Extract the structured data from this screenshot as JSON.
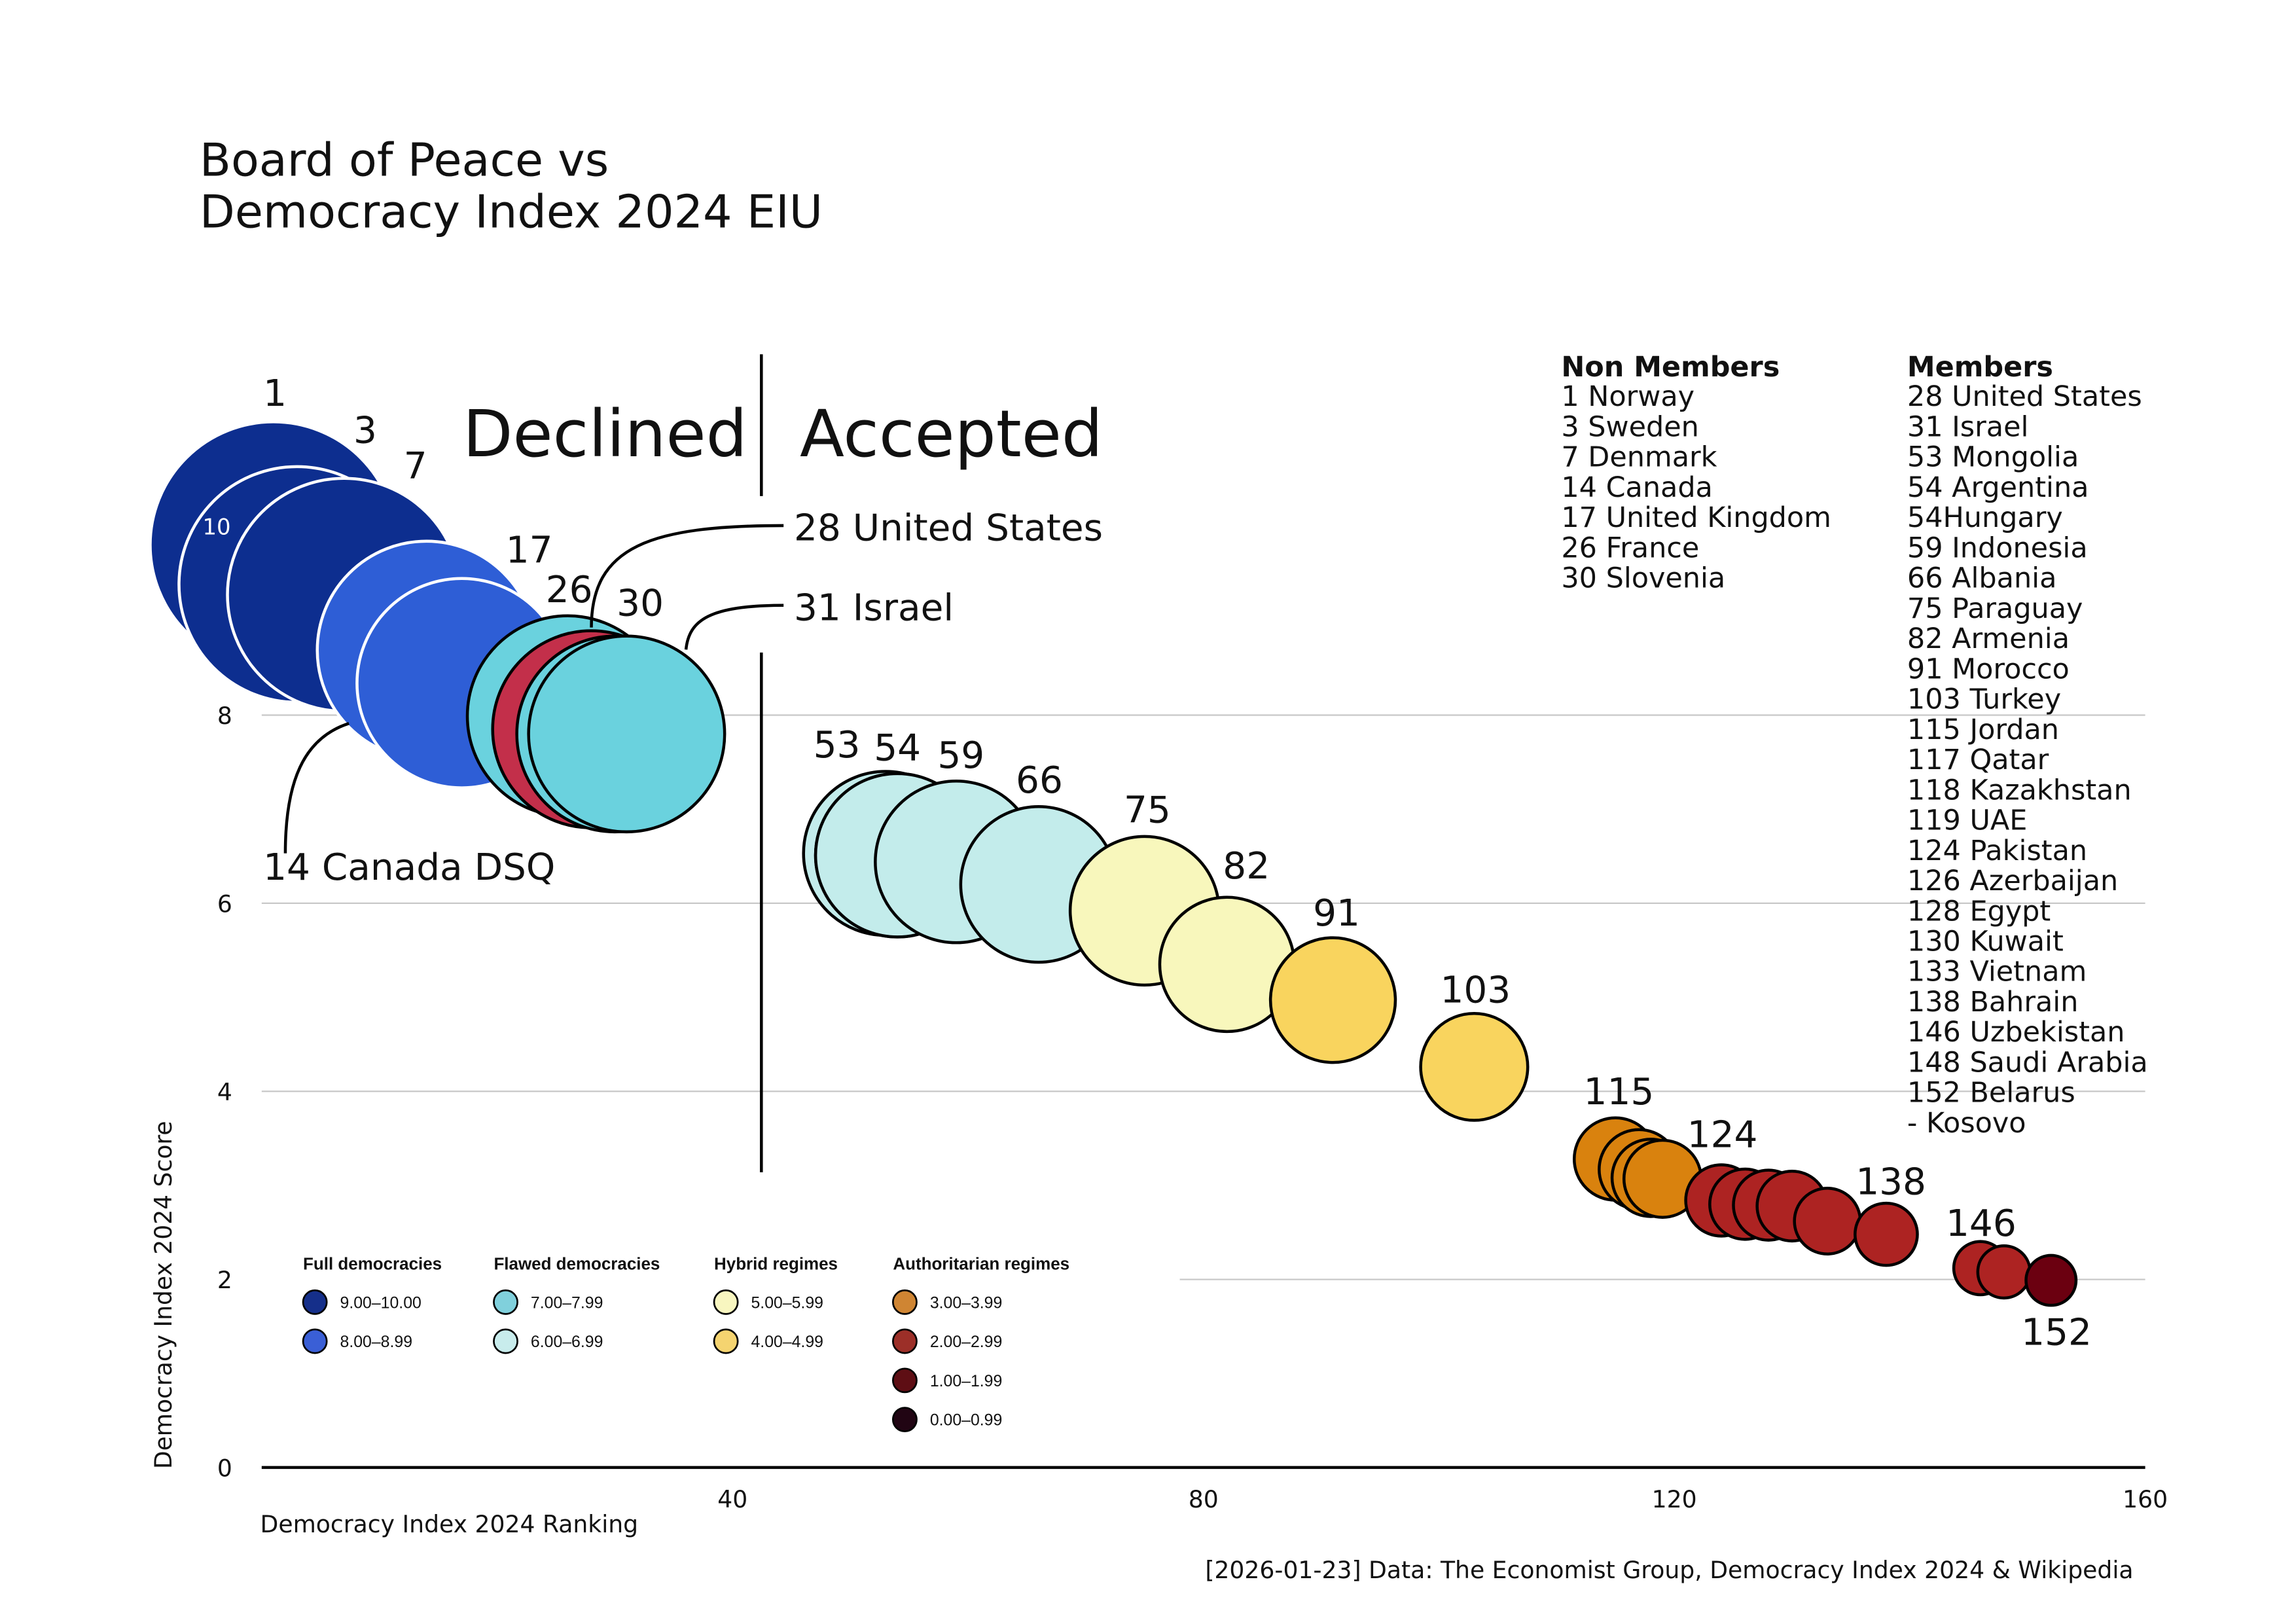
{
  "chart_data": {
    "type": "scatter",
    "title_lines": [
      "Board of Peace vs",
      "Democracy Index 2024 EIU"
    ],
    "xlabel": "Democracy Index 2024 Ranking",
    "ylabel": "Democracy Index 2024 Score",
    "xlim": [
      0,
      160
    ],
    "ylim": [
      0,
      10
    ],
    "x_ticks": [
      "40",
      "80",
      "120",
      "160"
    ],
    "y_ticks": [
      "0",
      "2",
      "4",
      "6",
      "8",
      "10"
    ],
    "grid": "horizontal",
    "encoding": "bubble size and color by score",
    "section_labels": {
      "declined": "Declined",
      "accepted": "Accepted"
    },
    "points": [
      {
        "rank": 1,
        "score": 9.81,
        "label": "1",
        "color": "#0d2e8f"
      },
      {
        "rank": 3,
        "score": 9.39,
        "label": "3",
        "color": "#0d2e8f"
      },
      {
        "rank": 7,
        "score": 9.28,
        "label": "7",
        "color": "#0d2e8f"
      },
      {
        "rank": 14,
        "score": 8.69,
        "label": "",
        "color": "#2e5ed6"
      },
      {
        "rank": 17,
        "score": 8.34,
        "label": "17",
        "color": "#2e5ed6"
      },
      {
        "rank": 26,
        "score": 7.99,
        "label": "26",
        "color": "#6ad2de"
      },
      {
        "rank": 28,
        "score": 7.85,
        "label": "",
        "color": "#c32f4a"
      },
      {
        "rank": 30,
        "score": 7.8,
        "label": "30",
        "color": "#6ad2de"
      },
      {
        "rank": 31,
        "score": 7.8,
        "label": "",
        "color": "#6ad2de"
      },
      {
        "rank": 53,
        "score": 6.53,
        "label": "53",
        "color": "#c3eceb"
      },
      {
        "rank": 54,
        "score": 6.51,
        "label": "54",
        "color": "#c3eceb"
      },
      {
        "rank": 54,
        "score": 6.51,
        "label": "",
        "color": "#c3eceb"
      },
      {
        "rank": 59,
        "score": 6.44,
        "label": "59",
        "color": "#c3eceb"
      },
      {
        "rank": 66,
        "score": 6.2,
        "label": "66",
        "color": "#c3eceb"
      },
      {
        "rank": 75,
        "score": 5.92,
        "label": "75",
        "color": "#f8f7bc"
      },
      {
        "rank": 82,
        "score": 5.35,
        "label": "82",
        "color": "#f8f7bc"
      },
      {
        "rank": 91,
        "score": 4.97,
        "label": "91",
        "color": "#f9d45e"
      },
      {
        "rank": 103,
        "score": 4.26,
        "label": "103",
        "color": "#f9d45e"
      },
      {
        "rank": 115,
        "score": 3.28,
        "label": "115",
        "color": "#d9820e"
      },
      {
        "rank": 117,
        "score": 3.17,
        "label": "",
        "color": "#d9820e"
      },
      {
        "rank": 118,
        "score": 3.08,
        "label": "",
        "color": "#d9820e"
      },
      {
        "rank": 119,
        "score": 3.07,
        "label": "",
        "color": "#d9820e"
      },
      {
        "rank": 124,
        "score": 2.84,
        "label": "124",
        "color": "#ad2322"
      },
      {
        "rank": 126,
        "score": 2.8,
        "label": "",
        "color": "#ad2322"
      },
      {
        "rank": 128,
        "score": 2.79,
        "label": "",
        "color": "#ad2322"
      },
      {
        "rank": 130,
        "score": 2.78,
        "label": "",
        "color": "#ad2322"
      },
      {
        "rank": 133,
        "score": 2.62,
        "label": "",
        "color": "#ad2322"
      },
      {
        "rank": 138,
        "score": 2.48,
        "label": "138",
        "color": "#ad2322"
      },
      {
        "rank": 146,
        "score": 2.12,
        "label": "146",
        "color": "#ad2322"
      },
      {
        "rank": 148,
        "score": 2.08,
        "label": "",
        "color": "#ad2322"
      },
      {
        "rank": 152,
        "score": 1.99,
        "label": "152",
        "color": "#6b0010"
      }
    ],
    "callouts": {
      "us": "28 United States",
      "israel": "31 Israel",
      "canada": "14 Canada DSQ"
    },
    "legend": [
      {
        "title": "Full democracies",
        "items": [
          {
            "label": "9.00–10.00",
            "color": "#152f8a"
          },
          {
            "label": "8.00–8.99",
            "color": "#3a5fd6"
          }
        ]
      },
      {
        "title": "Flawed democracies",
        "items": [
          {
            "label": "7.00–7.99",
            "color": "#80d0dc"
          },
          {
            "label": "6.00–6.99",
            "color": "#c8ecec"
          }
        ]
      },
      {
        "title": "Hybrid regimes",
        "items": [
          {
            "label": "5.00–5.99",
            "color": "#f8f6c0"
          },
          {
            "label": "4.00–4.99",
            "color": "#f5d470"
          }
        ]
      },
      {
        "title": "Authoritarian regimes",
        "items": [
          {
            "label": "3.00–3.99",
            "color": "#cf8533"
          },
          {
            "label": "2.00–2.99",
            "color": "#9c2f28"
          },
          {
            "label": "1.00–1.99",
            "color": "#5e0e14"
          },
          {
            "label": "0.00–0.99",
            "color": "#210513"
          }
        ]
      }
    ],
    "non_members": {
      "title": "Non Members",
      "items": [
        "1 Norway",
        "3 Sweden",
        "7 Denmark",
        "14 Canada",
        "17 United Kingdom",
        "26 France",
        "30 Slovenia"
      ]
    },
    "members": {
      "title": "Members",
      "items": [
        "28 United States",
        "31 Israel",
        "53 Mongolia",
        "54 Argentina",
        "54Hungary",
        "59 Indonesia",
        "66 Albania",
        "75 Paraguay",
        "82 Armenia",
        "91 Morocco",
        "103 Turkey",
        "115 Jordan",
        "117 Qatar",
        "118 Kazakhstan",
        "119 UAE",
        "124 Pakistan",
        "126 Azerbaijan",
        "128 Egypt",
        "130 Kuwait",
        "133 Vietnam",
        "138 Bahrain",
        "146 Uzbekistan",
        "148 Saudi Arabia",
        "152 Belarus",
        "-    Kosovo"
      ]
    },
    "source": "[2026-01-23] Data: The Economist Group, Democracy Index 2024 & Wikipedia"
  }
}
